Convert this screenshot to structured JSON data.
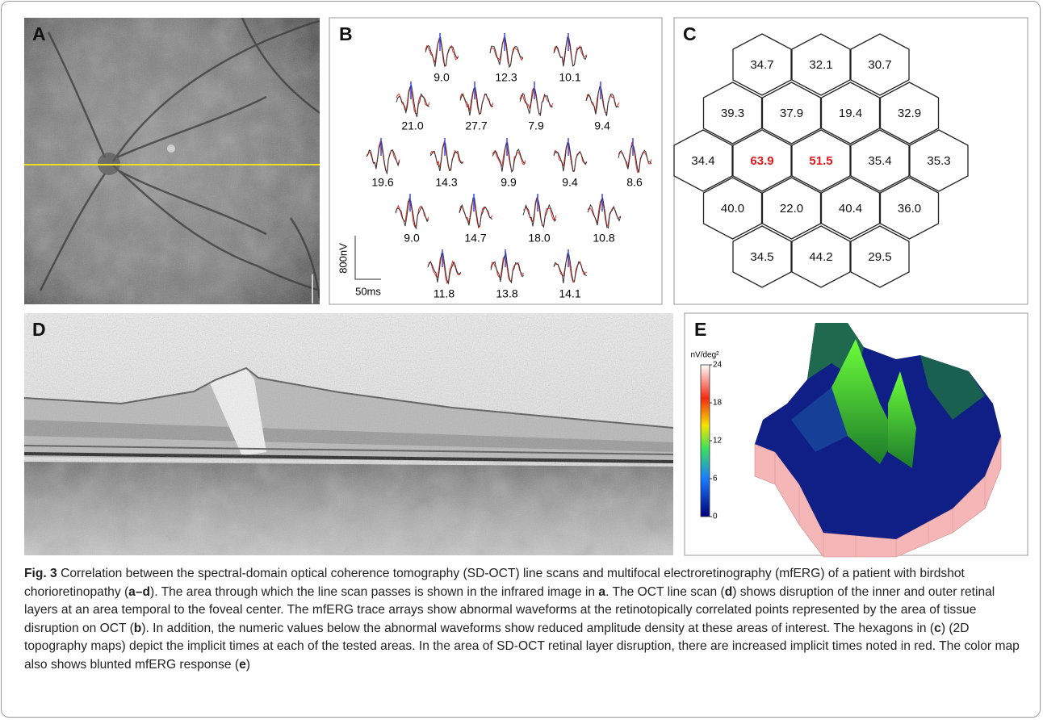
{
  "panels": {
    "A": {
      "label": "A"
    },
    "B": {
      "label": "B",
      "traces": [
        [
          "9.0",
          "12.3",
          "10.1"
        ],
        [
          "21.0",
          "27.7",
          "7.9",
          "9.4"
        ],
        [
          "19.6",
          "14.3",
          "9.9",
          "9.4",
          "8.6"
        ],
        [
          "9.0",
          "14.7",
          "18.0",
          "10.8"
        ],
        [
          "11.8",
          "13.8",
          "14.1"
        ]
      ],
      "scale_y": "800nV",
      "scale_x": "50ms"
    },
    "C": {
      "label": "C",
      "hexagons": [
        [
          {
            "value": "34.7",
            "color": "#111111"
          },
          {
            "value": "32.1",
            "color": "#111111"
          },
          {
            "value": "30.7",
            "color": "#111111"
          }
        ],
        [
          {
            "value": "39.3",
            "color": "#111111"
          },
          {
            "value": "37.9",
            "color": "#111111"
          },
          {
            "value": "19.4",
            "color": "#111111"
          },
          {
            "value": "32.9",
            "color": "#111111"
          }
        ],
        [
          {
            "value": "34.4",
            "color": "#111111"
          },
          {
            "value": "63.9",
            "color": "#e3171c"
          },
          {
            "value": "51.5",
            "color": "#e3171c"
          },
          {
            "value": "35.4",
            "color": "#111111"
          },
          {
            "value": "35.3",
            "color": "#111111"
          }
        ],
        [
          {
            "value": "40.0",
            "color": "#111111"
          },
          {
            "value": "22.0",
            "color": "#111111"
          },
          {
            "value": "40.4",
            "color": "#111111"
          },
          {
            "value": "36.0",
            "color": "#111111"
          }
        ],
        [
          {
            "value": "34.5",
            "color": "#111111"
          },
          {
            "value": "44.2",
            "color": "#111111"
          },
          {
            "value": "29.5",
            "color": "#111111"
          }
        ]
      ]
    },
    "D": {
      "label": "D"
    },
    "E": {
      "label": "E",
      "colorbar_title": "nV/deg²",
      "clim": [
        0,
        24
      ],
      "colorbar_ticks": [
        24,
        18,
        12,
        6,
        0
      ]
    }
  },
  "caption": {
    "runs": [
      {
        "text": "Fig. 3",
        "bold": true
      },
      {
        "text": " Correlation between the spectral-domain optical coherence tomography (SD-OCT) line scans and multifocal electroretinography (mfERG) of a patient with birdshot chorioretinopathy (",
        "bold": false
      },
      {
        "text": "a–d",
        "bold": true
      },
      {
        "text": "). The area through which the line scan passes is shown in the infrared image in ",
        "bold": false
      },
      {
        "text": "a",
        "bold": true
      },
      {
        "text": ". The OCT line scan (",
        "bold": false
      },
      {
        "text": "d",
        "bold": true
      },
      {
        "text": ") shows disruption of the inner and outer retinal layers at an area temporal to the foveal center. The mfERG trace arrays show abnormal waveforms at the retinotopically correlated points represented by the area of tissue disruption on OCT (",
        "bold": false
      },
      {
        "text": "b",
        "bold": true
      },
      {
        "text": "). In addition, the numeric values below the abnormal waveforms show reduced amplitude density at these areas of interest. The hexagons in (",
        "bold": false
      },
      {
        "text": "c",
        "bold": true
      },
      {
        "text": ") (2D topography maps) depict the implicit times at each of the tested areas. In the area of SD-OCT retinal layer disruption, there are increased implicit times noted in red. The color map also shows blunted mfERG response (",
        "bold": false
      },
      {
        "text": "e",
        "bold": true
      },
      {
        "text": ")",
        "bold": false
      }
    ]
  }
}
